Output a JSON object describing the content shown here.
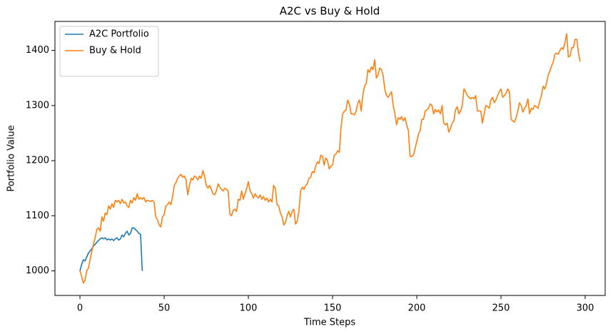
{
  "chart_data": {
    "type": "line",
    "title": "A2C vs Buy & Hold",
    "x_label": "Time Steps",
    "y_label": "Portfolio Value",
    "xlim": [
      -14.85,
      311.85
    ],
    "ylim": [
      955.4,
      1452.6
    ],
    "xticks": [
      0,
      50,
      100,
      150,
      200,
      250,
      300
    ],
    "yticks": [
      1000,
      1100,
      1200,
      1300,
      1400
    ],
    "grid": false,
    "legend": "upper left",
    "series": [
      {
        "name": "A2C Portfolio",
        "color": "#1f77b4",
        "x": [
          0,
          1,
          2,
          3,
          4,
          5,
          6,
          7,
          8,
          9,
          10,
          11,
          12,
          13,
          14,
          15,
          16,
          17,
          18,
          19,
          20,
          21,
          22,
          23,
          24,
          25,
          26,
          27,
          28,
          29,
          30,
          31,
          32,
          33,
          34,
          35,
          36,
          37
        ],
        "values": [
          1000,
          1012,
          1020,
          1018,
          1025,
          1032,
          1036,
          1040,
          1045,
          1048,
          1052,
          1055,
          1058,
          1060,
          1058,
          1060,
          1056,
          1058,
          1056,
          1058,
          1055,
          1058,
          1060,
          1056,
          1058,
          1065,
          1062,
          1068,
          1072,
          1065,
          1068,
          1078,
          1078,
          1075,
          1072,
          1068,
          1066,
          1000
        ]
      },
      {
        "name": "Buy & Hold",
        "color": "#ff7f0e",
        "x": [
          0,
          1,
          2,
          3,
          4,
          5,
          6,
          7,
          8,
          9,
          10,
          11,
          12,
          13,
          14,
          15,
          16,
          17,
          18,
          19,
          20,
          21,
          22,
          23,
          24,
          25,
          26,
          27,
          28,
          29,
          30,
          31,
          32,
          33,
          34,
          35,
          36,
          37,
          38,
          39,
          40,
          41,
          42,
          43,
          44,
          45,
          46,
          47,
          48,
          49,
          50,
          51,
          52,
          53,
          54,
          55,
          56,
          57,
          58,
          59,
          60,
          61,
          62,
          63,
          64,
          65,
          66,
          67,
          68,
          69,
          70,
          71,
          72,
          73,
          74,
          75,
          76,
          77,
          78,
          79,
          80,
          81,
          82,
          83,
          84,
          85,
          86,
          87,
          88,
          89,
          90,
          91,
          92,
          93,
          94,
          95,
          96,
          97,
          98,
          99,
          100,
          101,
          102,
          103,
          104,
          105,
          106,
          107,
          108,
          109,
          110,
          111,
          112,
          113,
          114,
          115,
          116,
          117,
          118,
          119,
          120,
          121,
          122,
          123,
          124,
          125,
          126,
          127,
          128,
          129,
          130,
          131,
          132,
          133,
          134,
          135,
          136,
          137,
          138,
          139,
          140,
          141,
          142,
          143,
          144,
          145,
          146,
          147,
          148,
          149,
          150,
          151,
          152,
          153,
          154,
          155,
          156,
          157,
          158,
          159,
          160,
          161,
          162,
          163,
          164,
          165,
          166,
          167,
          168,
          169,
          170,
          171,
          172,
          173,
          174,
          175,
          176,
          177,
          178,
          179,
          180,
          181,
          182,
          183,
          184,
          185,
          186,
          187,
          188,
          189,
          190,
          191,
          192,
          193,
          194,
          195,
          196,
          197,
          198,
          199,
          200,
          201,
          202,
          203,
          204,
          205,
          206,
          207,
          208,
          209,
          210,
          211,
          212,
          213,
          214,
          215,
          216,
          217,
          218,
          219,
          220,
          221,
          222,
          223,
          224,
          225,
          226,
          227,
          228,
          229,
          230,
          231,
          232,
          233,
          234,
          235,
          236,
          237,
          238,
          239,
          240,
          241,
          242,
          243,
          244,
          245,
          246,
          247,
          248,
          249,
          250,
          251,
          252,
          253,
          254,
          255,
          256,
          257,
          258,
          259,
          260,
          261,
          262,
          263,
          264,
          265,
          266,
          267,
          268,
          269,
          270,
          271,
          272,
          273,
          274,
          275,
          276,
          277,
          278,
          279,
          280,
          281,
          282,
          283,
          284,
          285,
          286,
          287,
          288,
          289,
          290,
          291,
          292,
          293,
          294,
          295,
          296,
          297
        ],
        "values": [
          1000,
          990,
          978,
          983,
          1000,
          1005,
          1020,
          1035,
          1048,
          1060,
          1075,
          1078,
          1072,
          1098,
          1090,
          1105,
          1102,
          1118,
          1112,
          1122,
          1115,
          1128,
          1125,
          1128,
          1122,
          1130,
          1123,
          1125,
          1118,
          1115,
          1128,
          1123,
          1133,
          1128,
          1140,
          1130,
          1133,
          1130,
          1133,
          1125,
          1128,
          1127,
          1126,
          1128,
          1125,
          1098,
          1093,
          1083,
          1080,
          1098,
          1102,
          1118,
          1120,
          1125,
          1120,
          1135,
          1155,
          1160,
          1168,
          1172,
          1175,
          1170,
          1172,
          1165,
          1138,
          1155,
          1168,
          1165,
          1172,
          1170,
          1165,
          1172,
          1168,
          1182,
          1172,
          1155,
          1150,
          1155,
          1148,
          1140,
          1138,
          1145,
          1158,
          1152,
          1148,
          1145,
          1150,
          1148,
          1145,
          1103,
          1100,
          1110,
          1112,
          1108,
          1130,
          1128,
          1145,
          1130,
          1140,
          1150,
          1162,
          1145,
          1140,
          1132,
          1140,
          1135,
          1132,
          1138,
          1130,
          1135,
          1128,
          1132,
          1125,
          1130,
          1125,
          1155,
          1150,
          1120,
          1118,
          1105,
          1098,
          1083,
          1088,
          1100,
          1108,
          1098,
          1108,
          1112,
          1085,
          1090,
          1108,
          1145,
          1152,
          1148,
          1155,
          1158,
          1168,
          1170,
          1180,
          1178,
          1190,
          1198,
          1195,
          1210,
          1208,
          1192,
          1205,
          1200,
          1185,
          1190,
          1192,
          1210,
          1212,
          1218,
          1215,
          1260,
          1285,
          1290,
          1292,
          1310,
          1302,
          1285,
          1285,
          1283,
          1290,
          1305,
          1310,
          1290,
          1320,
          1335,
          1340,
          1365,
          1360,
          1370,
          1365,
          1383,
          1350,
          1355,
          1368,
          1365,
          1355,
          1330,
          1318,
          1315,
          1320,
          1325,
          1300,
          1285,
          1265,
          1278,
          1275,
          1280,
          1272,
          1278,
          1265,
          1255,
          1208,
          1207,
          1210,
          1222,
          1235,
          1248,
          1255,
          1275,
          1275,
          1290,
          1292,
          1295,
          1303,
          1300,
          1285,
          1293,
          1288,
          1292,
          1285,
          1300,
          1268,
          1265,
          1268,
          1252,
          1258,
          1268,
          1272,
          1292,
          1298,
          1285,
          1290,
          1300,
          1330,
          1325,
          1318,
          1315,
          1312,
          1315,
          1312,
          1318,
          1290,
          1290,
          1290,
          1268,
          1285,
          1300,
          1298,
          1295,
          1310,
          1315,
          1305,
          1310,
          1318,
          1325,
          1330,
          1315,
          1318,
          1322,
          1330,
          1325,
          1275,
          1272,
          1270,
          1278,
          1290,
          1305,
          1300,
          1288,
          1295,
          1300,
          1312,
          1285,
          1295,
          1293,
          1300,
          1298,
          1295,
          1308,
          1318,
          1335,
          1330,
          1340,
          1355,
          1362,
          1372,
          1378,
          1393,
          1395,
          1393,
          1400,
          1405,
          1402,
          1415,
          1430,
          1388,
          1390,
          1405,
          1405,
          1420,
          1420,
          1395,
          1380
        ]
      }
    ]
  }
}
